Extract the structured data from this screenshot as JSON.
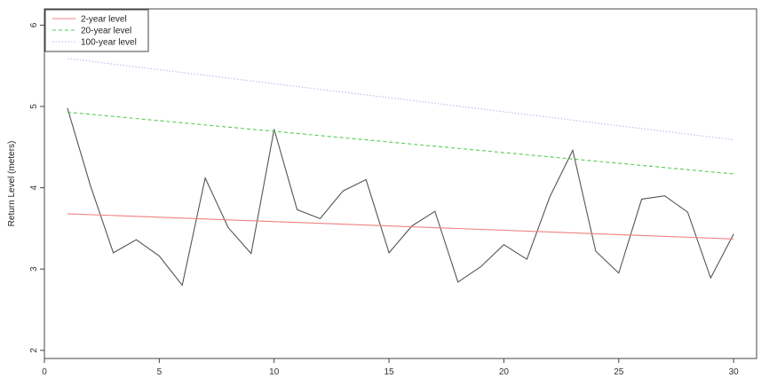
{
  "chart_data": {
    "type": "line",
    "title": "",
    "xlabel": "",
    "ylabel": "Return Level (meters)",
    "xlim": [
      0,
      31
    ],
    "ylim": [
      1.9,
      6.2
    ],
    "x_ticks": [
      0,
      5,
      10,
      15,
      20,
      25,
      30
    ],
    "y_ticks": [
      2,
      3,
      4,
      5,
      6
    ],
    "grid": false,
    "legend_position": "top-left",
    "x": [
      1,
      2,
      3,
      4,
      5,
      6,
      7,
      8,
      9,
      10,
      11,
      12,
      13,
      14,
      15,
      16,
      17,
      18,
      19,
      20,
      21,
      22,
      23,
      24,
      25,
      26,
      27,
      28,
      29,
      30
    ],
    "series": [
      {
        "name": "",
        "color": "#555555",
        "style": "solid",
        "values": [
          4.98,
          4.03,
          3.2,
          3.36,
          3.16,
          2.8,
          4.12,
          3.51,
          3.19,
          4.72,
          3.73,
          3.62,
          3.96,
          4.1,
          3.2,
          3.53,
          3.71,
          2.84,
          3.03,
          3.3,
          3.12,
          3.89,
          4.46,
          3.22,
          2.95,
          3.86,
          3.9,
          3.7,
          2.89,
          3.43
        ]
      },
      {
        "name": "2-year level",
        "color": "#f08080",
        "style": "solid",
        "x": [
          1,
          30
        ],
        "values": [
          3.68,
          3.37
        ]
      },
      {
        "name": "20-year level",
        "color": "#55cc55",
        "style": "dashed",
        "x": [
          1,
          30
        ],
        "values": [
          4.93,
          4.17
        ]
      },
      {
        "name": "100-year level",
        "color": "#bbbbf0",
        "style": "dotted",
        "x": [
          1,
          30
        ],
        "values": [
          5.59,
          4.59
        ]
      }
    ]
  }
}
